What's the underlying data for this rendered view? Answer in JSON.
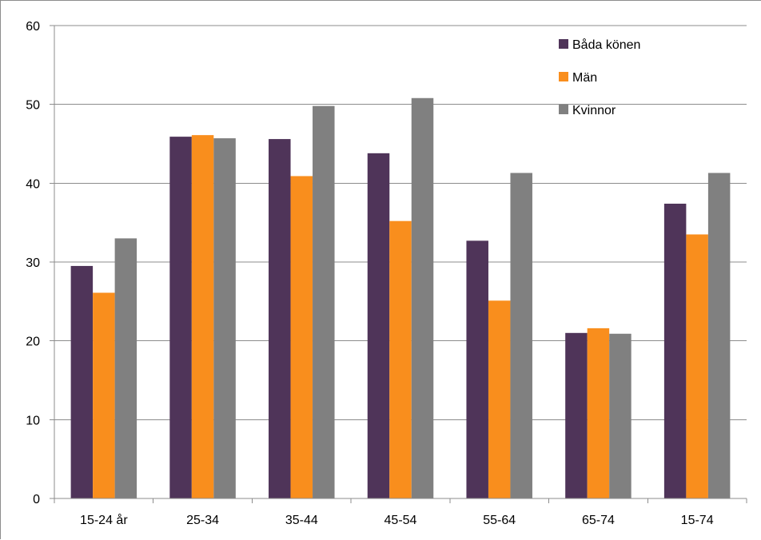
{
  "chart_data": {
    "type": "bar",
    "categories": [
      "15-24 år",
      "25-34",
      "35-44",
      "45-54",
      "55-64",
      "65-74",
      "15-74"
    ],
    "series": [
      {
        "name": "Båda könen",
        "color": "#4f3459",
        "values": [
          29.5,
          45.9,
          45.6,
          43.8,
          32.7,
          21.0,
          37.4
        ]
      },
      {
        "name": "Män",
        "color": "#f98e1d",
        "values": [
          26.1,
          46.1,
          40.9,
          35.2,
          25.1,
          21.6,
          33.5
        ]
      },
      {
        "name": "Kvinnor",
        "color": "#808080",
        "values": [
          33.0,
          45.7,
          49.8,
          50.8,
          41.3,
          20.9,
          41.3
        ]
      }
    ],
    "ylim": [
      0,
      60
    ],
    "yticks": [
      0,
      10,
      20,
      30,
      40,
      50,
      60
    ],
    "grid": true,
    "legend_position": "top-right",
    "title": "",
    "xlabel": "",
    "ylabel": ""
  }
}
